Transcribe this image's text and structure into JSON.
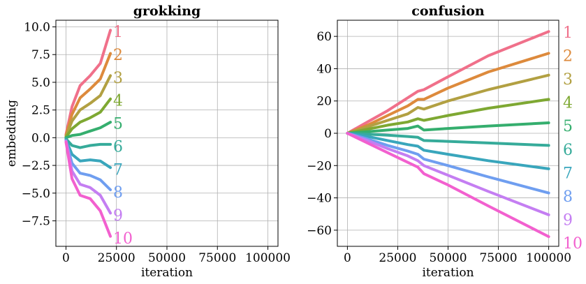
{
  "chart_data": [
    {
      "type": "line",
      "title": "grokking",
      "xlabel": "iteration",
      "ylabel": "embedding",
      "xlim": [
        -5000,
        105000
      ],
      "ylim": [
        -9.8,
        10.6
      ],
      "xticks": [
        0,
        25000,
        50000,
        75000,
        100000
      ],
      "xtick_labels": [
        "0",
        "25000",
        "50000",
        "75000",
        "100000"
      ],
      "yticks": [
        -7.5,
        -5.0,
        -2.5,
        0.0,
        2.5,
        5.0,
        7.5,
        10.0
      ],
      "ytick_labels": [
        "−7.5",
        "−5.0",
        "−2.5",
        "0.0",
        "2.5",
        "5.0",
        "7.5",
        "10.0"
      ],
      "grid": true,
      "series": [
        {
          "name": "1",
          "color": "#f0708a",
          "x": [
            0,
            3000,
            7000,
            12000,
            17000,
            22000
          ],
          "y": [
            0.3,
            2.8,
            4.7,
            5.6,
            6.7,
            9.7
          ]
        },
        {
          "name": "2",
          "color": "#dd8a3c",
          "x": [
            0,
            3000,
            7000,
            12000,
            17000,
            22000
          ],
          "y": [
            0.2,
            2.1,
            3.6,
            4.4,
            5.3,
            7.6
          ]
        },
        {
          "name": "3",
          "color": "#b2a042",
          "x": [
            0,
            3000,
            7000,
            12000,
            17000,
            22000
          ],
          "y": [
            0.1,
            1.5,
            2.5,
            3.1,
            3.8,
            5.6
          ]
        },
        {
          "name": "4",
          "color": "#7ea832",
          "x": [
            0,
            3000,
            7000,
            12000,
            17000,
            22000
          ],
          "y": [
            0.05,
            0.8,
            1.4,
            1.8,
            2.3,
            3.5
          ]
        },
        {
          "name": "5",
          "color": "#35ae6e",
          "x": [
            0,
            3000,
            7000,
            12000,
            17000,
            22000
          ],
          "y": [
            0.0,
            0.2,
            0.3,
            0.6,
            0.9,
            1.4
          ]
        },
        {
          "name": "6",
          "color": "#36ab9a",
          "x": [
            0,
            3000,
            7000,
            12000,
            17000,
            22000
          ],
          "y": [
            -0.1,
            -0.7,
            -0.9,
            -0.7,
            -0.6,
            -0.6
          ]
        },
        {
          "name": "7",
          "color": "#39a6bc",
          "x": [
            0,
            3000,
            7000,
            12000,
            17000,
            22000
          ],
          "y": [
            -0.2,
            -1.5,
            -2.1,
            -2.0,
            -2.1,
            -2.7
          ]
        },
        {
          "name": "8",
          "color": "#6f9ef0",
          "x": [
            0,
            3000,
            7000,
            12000,
            17000,
            22000
          ],
          "y": [
            -0.3,
            -2.3,
            -3.2,
            -3.4,
            -3.8,
            -4.7
          ]
        },
        {
          "name": "9",
          "color": "#c47ef2",
          "x": [
            0,
            3000,
            7000,
            12000,
            17000,
            22000
          ],
          "y": [
            -0.3,
            -3.0,
            -4.2,
            -4.5,
            -5.2,
            -6.8
          ]
        },
        {
          "name": "10",
          "color": "#f260cf",
          "x": [
            0,
            3000,
            7000,
            12000,
            17000,
            22000
          ],
          "y": [
            -0.4,
            -3.7,
            -5.2,
            -5.5,
            -6.6,
            -8.9
          ]
        }
      ]
    },
    {
      "type": "line",
      "title": "confusion",
      "xlabel": "iteration",
      "xlim": [
        -5000,
        105000
      ],
      "ylim": [
        -70,
        70
      ],
      "xticks": [
        0,
        25000,
        50000,
        75000,
        100000
      ],
      "xtick_labels": [
        "0",
        "25000",
        "50000",
        "75000",
        "100000"
      ],
      "yticks": [
        -60,
        -40,
        -20,
        0,
        20,
        40,
        60
      ],
      "ytick_labels": [
        "−60",
        "−40",
        "−20",
        "0",
        "20",
        "40",
        "60"
      ],
      "grid": true,
      "series": [
        {
          "name": "1",
          "color": "#f0708a",
          "x": [
            0,
            10000,
            20000,
            30000,
            35000,
            38000,
            50000,
            70000,
            100000
          ],
          "y": [
            0,
            7,
            14,
            22,
            26,
            27,
            35,
            48,
            63
          ]
        },
        {
          "name": "2",
          "color": "#dd8a3c",
          "x": [
            0,
            10000,
            20000,
            30000,
            35000,
            38000,
            50000,
            70000,
            100000
          ],
          "y": [
            0,
            5,
            11,
            17,
            21,
            21,
            28,
            38,
            49.5
          ]
        },
        {
          "name": "3",
          "color": "#b2a042",
          "x": [
            0,
            10000,
            20000,
            30000,
            35000,
            38000,
            50000,
            70000,
            100000
          ],
          "y": [
            0,
            4,
            8,
            12,
            16,
            15,
            20,
            27,
            36
          ]
        },
        {
          "name": "4",
          "color": "#7ea832",
          "x": [
            0,
            10000,
            20000,
            30000,
            35000,
            38000,
            50000,
            70000,
            100000
          ],
          "y": [
            0,
            2.5,
            5,
            7,
            9,
            8,
            11,
            15.5,
            21
          ]
        },
        {
          "name": "5",
          "color": "#35ae6e",
          "x": [
            0,
            10000,
            20000,
            30000,
            35000,
            38000,
            50000,
            70000,
            100000
          ],
          "y": [
            0,
            1,
            2,
            3,
            4.5,
            2,
            3,
            4.5,
            6.5
          ]
        },
        {
          "name": "6",
          "color": "#36ab9a",
          "x": [
            0,
            10000,
            20000,
            30000,
            35000,
            38000,
            50000,
            70000,
            100000
          ],
          "y": [
            0,
            -0.5,
            -1.2,
            -2,
            -2.5,
            -4.5,
            -5,
            -6,
            -7.5
          ]
        },
        {
          "name": "7",
          "color": "#39a6bc",
          "x": [
            0,
            10000,
            20000,
            30000,
            35000,
            38000,
            50000,
            70000,
            100000
          ],
          "y": [
            0,
            -2,
            -4.5,
            -7,
            -8,
            -10.5,
            -13,
            -17,
            -22
          ]
        },
        {
          "name": "8",
          "color": "#6f9ef0",
          "x": [
            0,
            10000,
            20000,
            30000,
            35000,
            38000,
            50000,
            70000,
            100000
          ],
          "y": [
            0,
            -3.5,
            -7.5,
            -11,
            -13,
            -16,
            -20,
            -27,
            -37
          ]
        },
        {
          "name": "9",
          "color": "#c47ef2",
          "x": [
            0,
            10000,
            20000,
            30000,
            35000,
            38000,
            50000,
            70000,
            100000
          ],
          "y": [
            0,
            -4.5,
            -9.5,
            -14,
            -17,
            -20,
            -26,
            -36,
            -50.5
          ]
        },
        {
          "name": "10",
          "color": "#f260cf",
          "x": [
            0,
            10000,
            20000,
            30000,
            35000,
            38000,
            50000,
            70000,
            100000
          ],
          "y": [
            0,
            -6,
            -12,
            -18,
            -21,
            -25,
            -32,
            -45,
            -64
          ]
        }
      ]
    }
  ]
}
